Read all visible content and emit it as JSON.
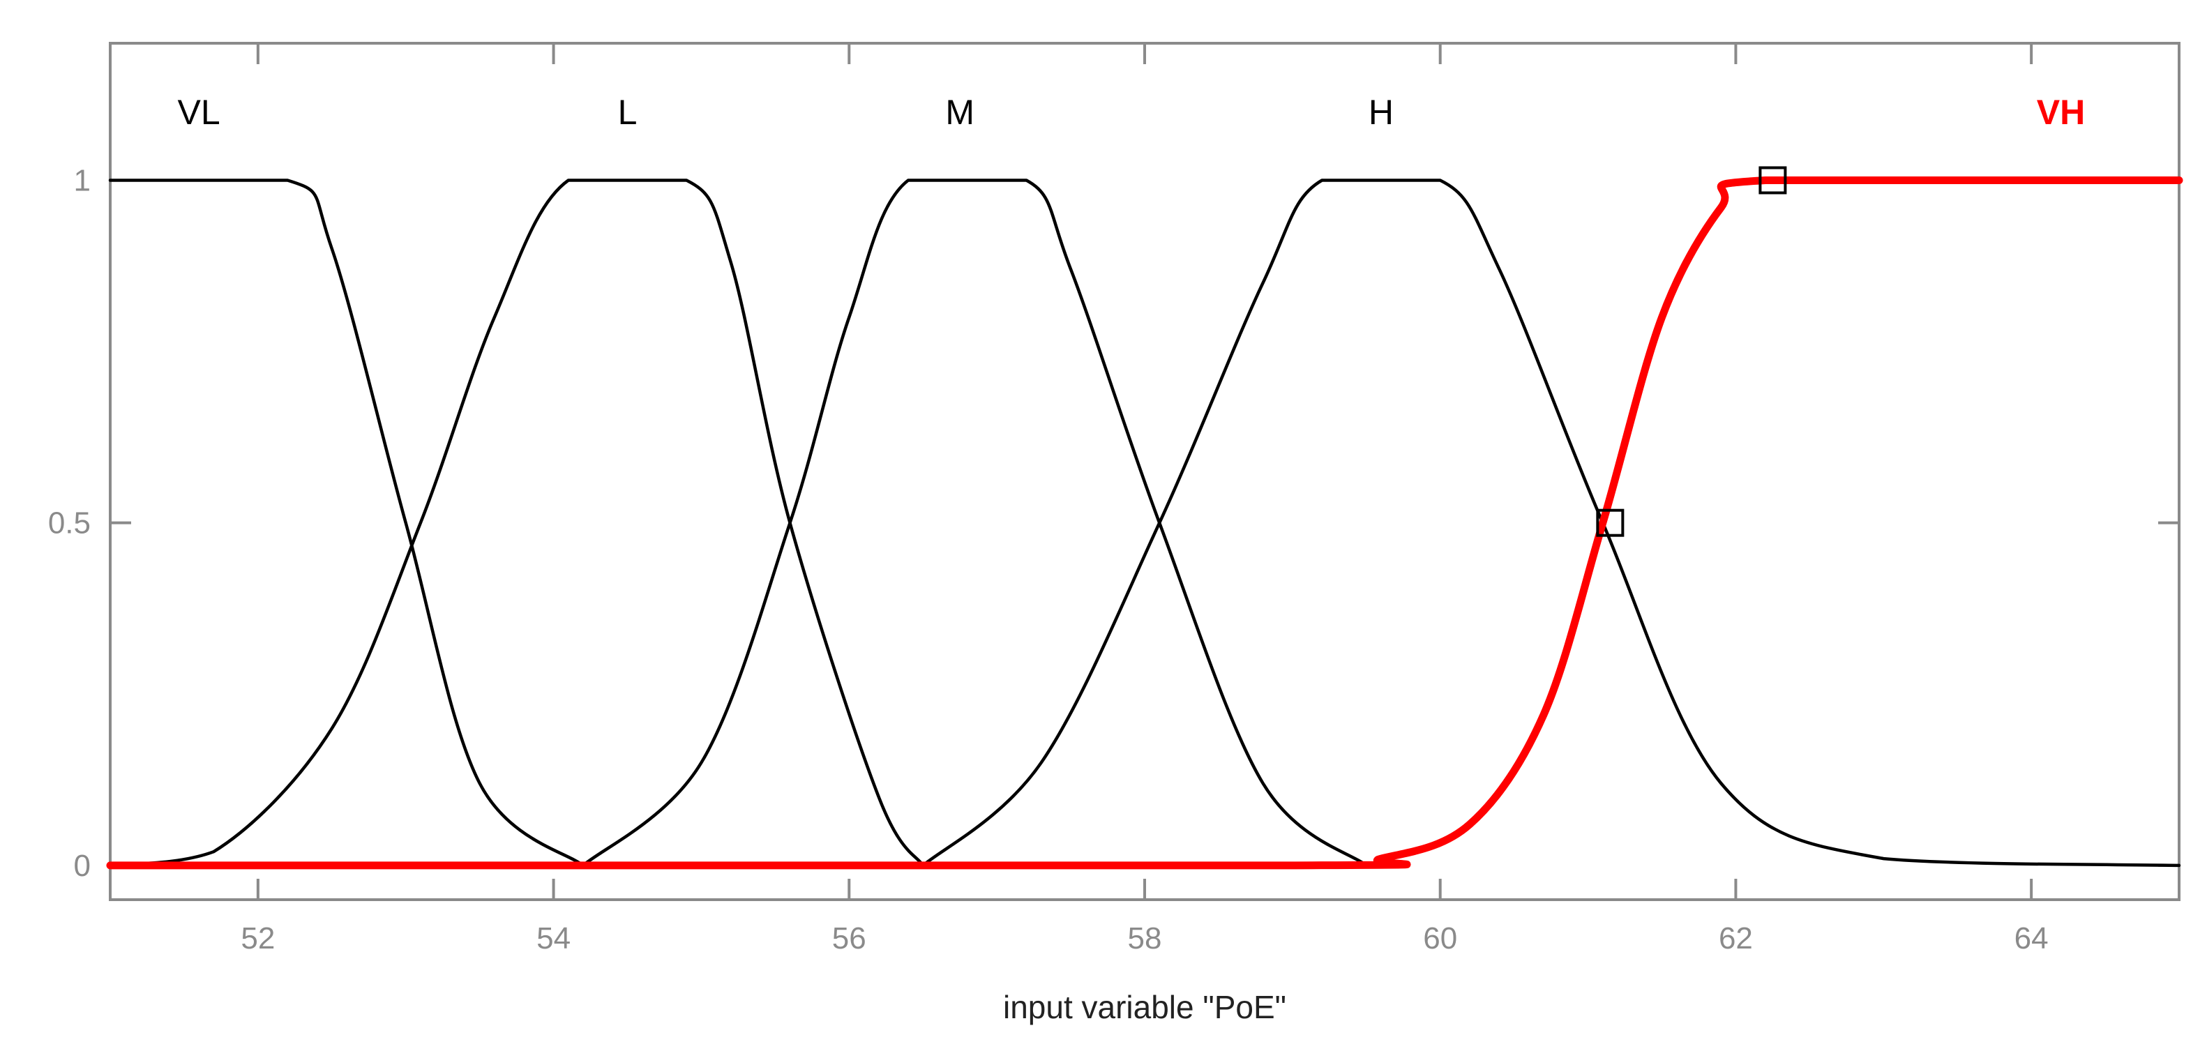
{
  "chart_data": {
    "type": "line",
    "xlabel": "input variable \"PoE\"",
    "ylabel": "",
    "xlim": [
      51,
      65
    ],
    "ylim": [
      -0.05,
      1.2
    ],
    "x_ticks": [
      {
        "value": 52,
        "label": "52"
      },
      {
        "value": 54,
        "label": "54"
      },
      {
        "value": 56,
        "label": "56"
      },
      {
        "value": 58,
        "label": "58"
      },
      {
        "value": 60,
        "label": "60"
      },
      {
        "value": 62,
        "label": "62"
      },
      {
        "value": 64,
        "label": "64"
      }
    ],
    "y_ticks": [
      {
        "value": 0,
        "label": "0"
      },
      {
        "value": 0.5,
        "label": "0.5"
      },
      {
        "value": 1,
        "label": "1"
      }
    ],
    "grid": false,
    "colors": {
      "default": "#000000",
      "selected": "#ff0000",
      "tick": "#8a8a8a",
      "frame": "#8a8a8a"
    },
    "series": [
      {
        "name": "VL",
        "label_x": 51.6,
        "selected": false,
        "points": [
          [
            51,
            1
          ],
          [
            52.2,
            1
          ],
          [
            52.5,
            0.9
          ],
          [
            53,
            0.5
          ],
          [
            53.5,
            0.12
          ],
          [
            54.2,
            0
          ]
        ]
      },
      {
        "name": "L",
        "label_x": 54.5,
        "selected": false,
        "points": [
          [
            51,
            0
          ],
          [
            51.7,
            0.02
          ],
          [
            52.5,
            0.2
          ],
          [
            53.1,
            0.5
          ],
          [
            53.6,
            0.8
          ],
          [
            54.1,
            1
          ],
          [
            54.9,
            1
          ],
          [
            55.2,
            0.88
          ],
          [
            55.6,
            0.5
          ],
          [
            56.2,
            0.1
          ],
          [
            56.5,
            0
          ]
        ]
      },
      {
        "name": "M",
        "label_x": 56.75,
        "selected": false,
        "points": [
          [
            54.2,
            0
          ],
          [
            55,
            0.15
          ],
          [
            55.6,
            0.5
          ],
          [
            56,
            0.8
          ],
          [
            56.4,
            1
          ],
          [
            57.2,
            1
          ],
          [
            57.5,
            0.87
          ],
          [
            58.1,
            0.5
          ],
          [
            58.8,
            0.12
          ],
          [
            59.5,
            0
          ]
        ]
      },
      {
        "name": "H",
        "label_x": 59.6,
        "selected": false,
        "points": [
          [
            56.5,
            0
          ],
          [
            57.3,
            0.15
          ],
          [
            58.1,
            0.5
          ],
          [
            58.8,
            0.85
          ],
          [
            59.2,
            1
          ],
          [
            60,
            1
          ],
          [
            60.4,
            0.87
          ],
          [
            61.1,
            0.5
          ],
          [
            61.9,
            0.12
          ],
          [
            63,
            0.01
          ],
          [
            65,
            0
          ]
        ]
      },
      {
        "name": "VH",
        "label_x": 64.2,
        "selected": true,
        "points": [
          [
            51,
            0
          ],
          [
            59,
            0
          ],
          [
            59.6,
            0.01
          ],
          [
            60.2,
            0.06
          ],
          [
            60.7,
            0.22
          ],
          [
            61.1,
            0.5
          ],
          [
            61.5,
            0.8
          ],
          [
            61.9,
            0.96
          ],
          [
            62.2,
            1
          ],
          [
            65,
            1
          ]
        ]
      }
    ],
    "markers": [
      {
        "x": 62.25,
        "y": 1
      },
      {
        "x": 61.15,
        "y": 0.5
      }
    ]
  }
}
